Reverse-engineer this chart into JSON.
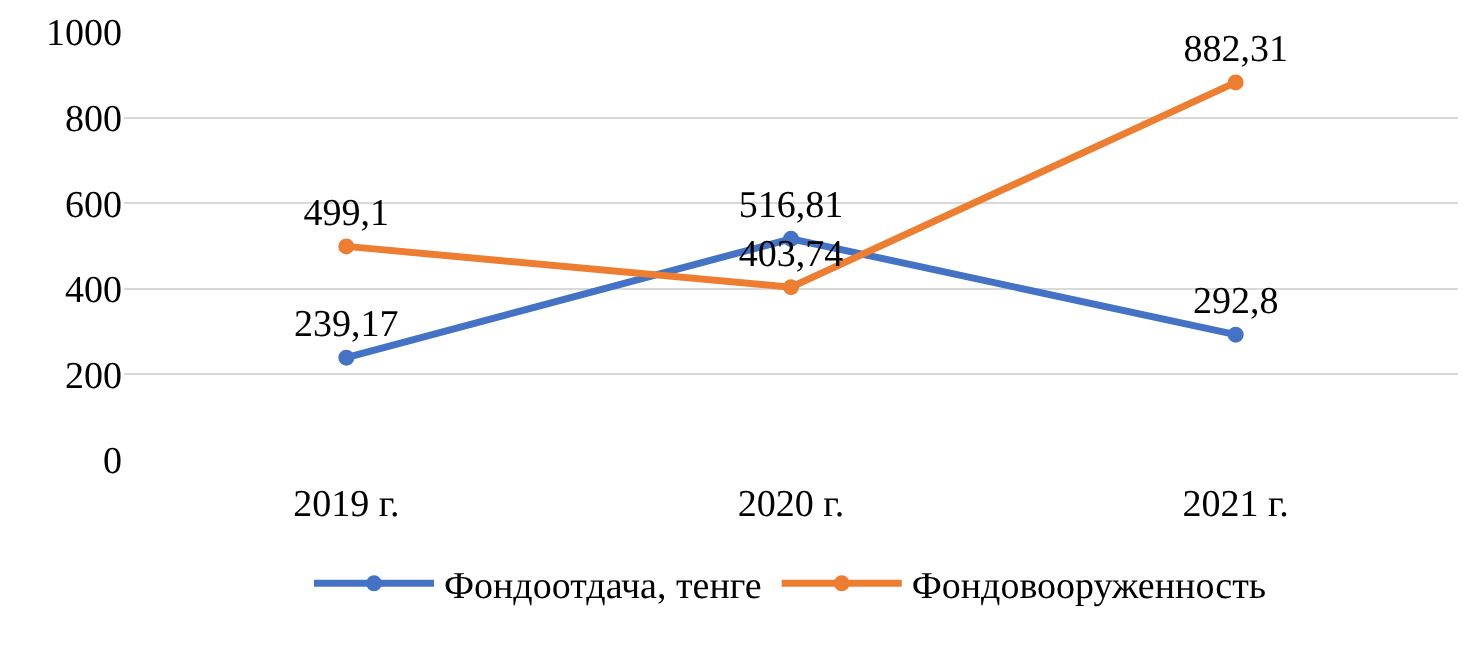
{
  "chart_data": {
    "type": "line",
    "categories": [
      "2019 г.",
      "2020 г.",
      "2021 г."
    ],
    "series": [
      {
        "name": "Фондоотдача, тенге",
        "color": "#4472c4",
        "values": [
          239.17,
          516.81,
          292.8
        ],
        "value_labels": [
          "239,17",
          "516,81",
          "292,8"
        ]
      },
      {
        "name": "Фондовооруженность",
        "color": "#ed7d31",
        "values": [
          499.1,
          403.74,
          882.31
        ],
        "value_labels": [
          "499,1",
          "403,74",
          "882,31"
        ]
      }
    ],
    "ylim": [
      0,
      1000
    ],
    "yticks": [
      0,
      200,
      400,
      600,
      800,
      1000
    ],
    "grid": "y",
    "legend": "bottom",
    "marker": "circle",
    "line_style": "solid"
  }
}
